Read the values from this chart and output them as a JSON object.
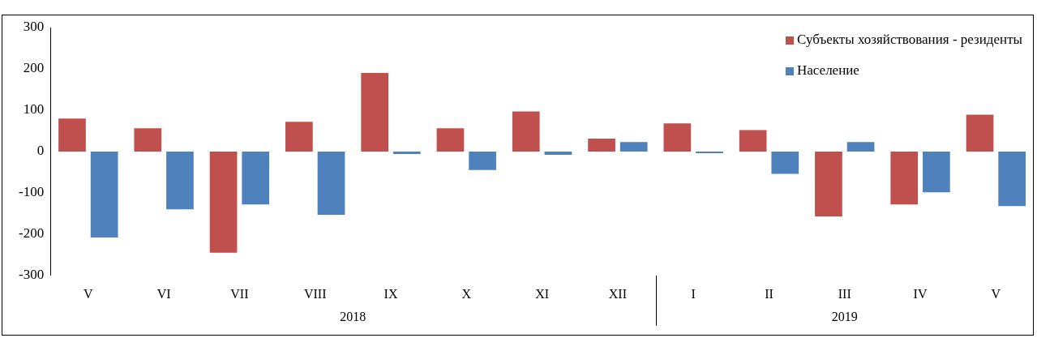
{
  "chart_data": {
    "type": "bar",
    "categories": [
      "V",
      "VI",
      "VII",
      "VIII",
      "IX",
      "X",
      "XI",
      "XII",
      "I",
      "II",
      "III",
      "IV",
      "V"
    ],
    "series": [
      {
        "name": "Субъекты хозяйствования - резиденты",
        "color": "#c0504d",
        "values": [
          80,
          56,
          -245,
          72,
          190,
          56,
          97,
          31,
          68,
          52,
          -157,
          -128,
          89
        ]
      },
      {
        "name": "Население",
        "color": "#4f81bd",
        "values": [
          -208,
          -140,
          -128,
          -153,
          -6,
          -45,
          -8,
          23,
          -4,
          -54,
          23,
          -99,
          -132
        ]
      }
    ],
    "annotations": [
      "2018",
      "2019"
    ],
    "ylim": [
      -300,
      300
    ],
    "yticks": [
      -300,
      -200,
      -100,
      0,
      100,
      200,
      300
    ],
    "grid": false,
    "legend": "top right"
  }
}
